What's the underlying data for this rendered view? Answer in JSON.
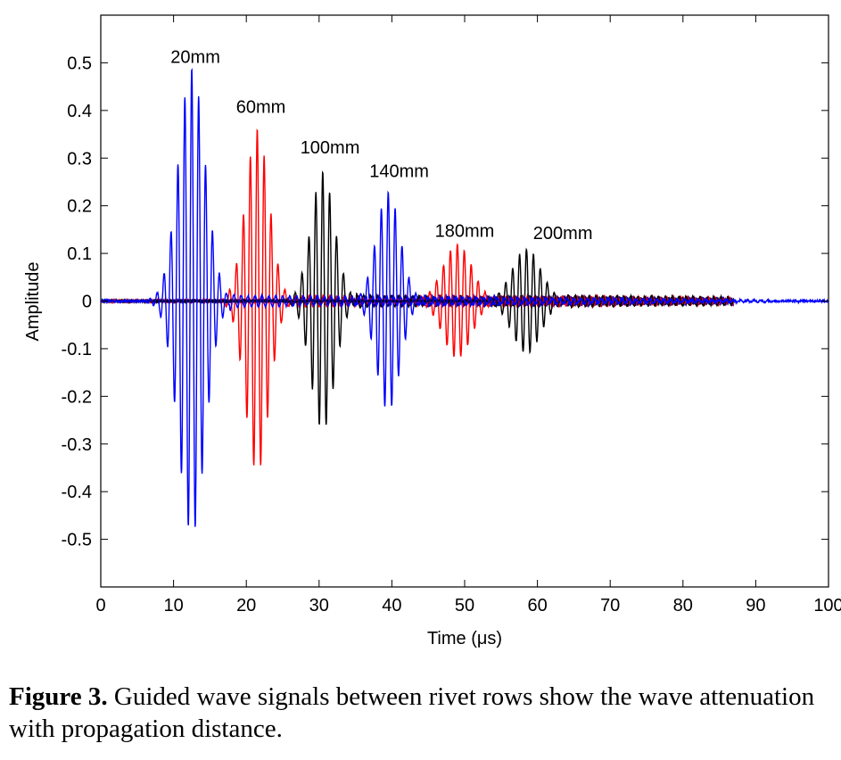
{
  "chart_data": {
    "type": "line",
    "xlabel": "Time (μs)",
    "ylabel": "Amplitude",
    "xlim": [
      0,
      100
    ],
    "ylim": [
      -0.6,
      0.6
    ],
    "xticks": [
      0,
      10,
      20,
      30,
      40,
      50,
      60,
      70,
      80,
      90,
      100
    ],
    "xtick_labels": [
      "0",
      "10",
      "20",
      "30",
      "40",
      "50",
      "60",
      "70",
      "80",
      "90",
      "100"
    ],
    "yticks": [
      0.5,
      0.4,
      0.3,
      0.2,
      0.1,
      0,
      -0.1,
      -0.2,
      -0.3,
      -0.4,
      -0.5
    ],
    "ytick_labels": [
      "0.5",
      "0.4",
      "0.3",
      "0.2",
      "0.1",
      "0",
      "-0.1",
      "-0.2",
      "-0.3",
      "-0.4",
      "-0.5"
    ],
    "grid": false,
    "series": [
      {
        "color": "#0000ff",
        "center": 12.5,
        "amplitude": 0.49,
        "width": 2.6,
        "end": 100
      },
      {
        "color": "#ff0000",
        "center": 21.5,
        "amplitude": 0.36,
        "width": 2.3,
        "end": 87
      },
      {
        "color": "#000000",
        "center": 30.5,
        "amplitude": 0.27,
        "width": 2.3,
        "end": 87
      },
      {
        "color": "#0000ff",
        "center": 39.5,
        "amplitude": 0.23,
        "width": 2.3,
        "end": 87
      },
      {
        "color": "#ff0000",
        "center": 49,
        "amplitude": 0.12,
        "width": 2.8,
        "end": 87
      },
      {
        "color": "#000000",
        "center": 58.5,
        "amplitude": 0.11,
        "width": 2.8,
        "end": 87
      }
    ],
    "annotations": [
      {
        "text": "20mm",
        "x": 13,
        "y": 0.5
      },
      {
        "text": "60mm",
        "x": 22,
        "y": 0.395
      },
      {
        "text": "100mm",
        "x": 31.5,
        "y": 0.31
      },
      {
        "text": "140mm",
        "x": 41,
        "y": 0.26
      },
      {
        "text": "180mm",
        "x": 50,
        "y": 0.135
      },
      {
        "text": "200mm",
        "x": 63.5,
        "y": 0.13
      }
    ]
  },
  "caption": {
    "label": "Figure 3.",
    "text": " Guided wave signals between rivet rows show the wave attenuation with propagation distance."
  }
}
